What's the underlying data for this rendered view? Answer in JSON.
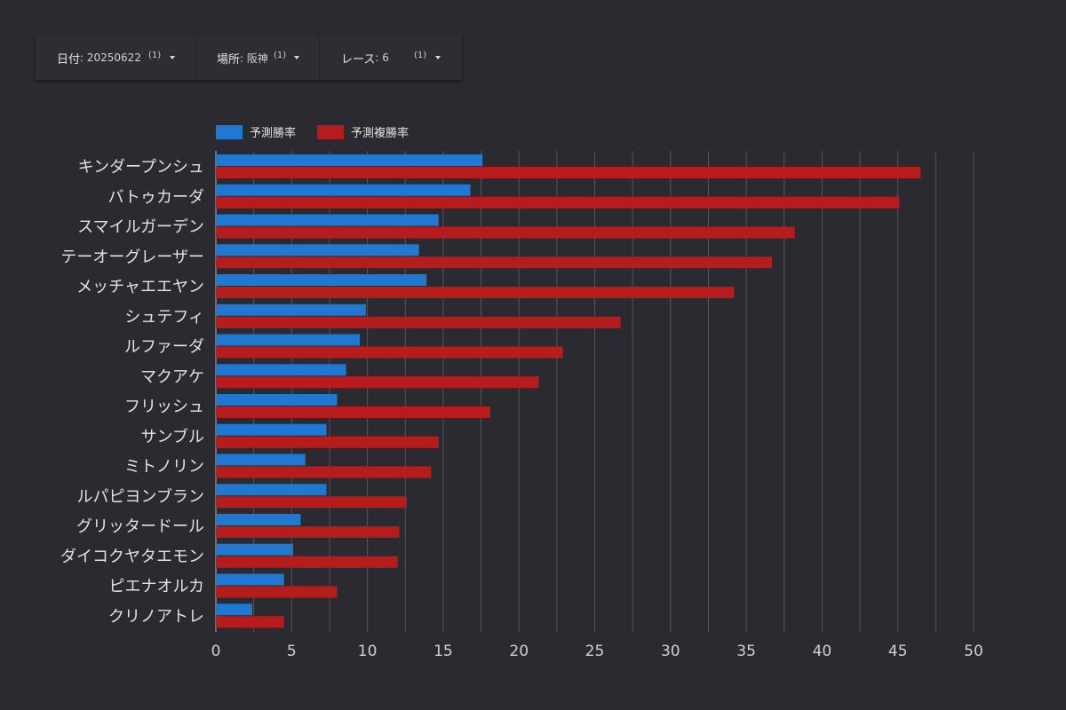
{
  "filters": [
    {
      "label": "日付",
      "value": ": 20250622",
      "count": "(1)"
    },
    {
      "label": "場所",
      "value": ": 阪神",
      "count": "(1)"
    },
    {
      "label": "レース",
      "value": ": 6",
      "count": "(1)"
    }
  ],
  "legend": [
    "予測勝率",
    "予測複勝率"
  ],
  "colors": {
    "win": "#1f78d1",
    "place": "#b71c1c",
    "grid": "#55545a",
    "axis": "#9a9a9a"
  },
  "chart_data": {
    "type": "bar",
    "orientation": "horizontal",
    "categories": [
      "キンダープンシュ",
      "バトゥカーダ",
      "スマイルガーデン",
      "テーオーグレーザー",
      "メッチャエエヤン",
      "シュテフィ",
      "ルファーダ",
      "マクアケ",
      "フリッシュ",
      "サンブル",
      "ミトノリン",
      "ルパピヨンブラン",
      "グリッタードール",
      "ダイコクヤタエモン",
      "ピエナオルカ",
      "クリノアトレ"
    ],
    "series": [
      {
        "name": "予測勝率",
        "values": [
          17.6,
          16.8,
          14.7,
          13.4,
          13.9,
          9.9,
          9.5,
          8.6,
          8.0,
          7.3,
          5.9,
          7.3,
          5.6,
          5.1,
          4.5,
          2.4
        ]
      },
      {
        "name": "予測複勝率",
        "values": [
          46.5,
          45.1,
          38.2,
          36.7,
          34.2,
          26.7,
          22.9,
          21.3,
          18.1,
          14.7,
          14.2,
          12.6,
          12.1,
          12.0,
          8.0,
          4.5
        ]
      }
    ],
    "xlim": [
      0,
      50
    ],
    "xticks": [
      0,
      5,
      10,
      15,
      20,
      25,
      30,
      35,
      40,
      45,
      50
    ],
    "grid": true,
    "legend_position": "top-left"
  }
}
